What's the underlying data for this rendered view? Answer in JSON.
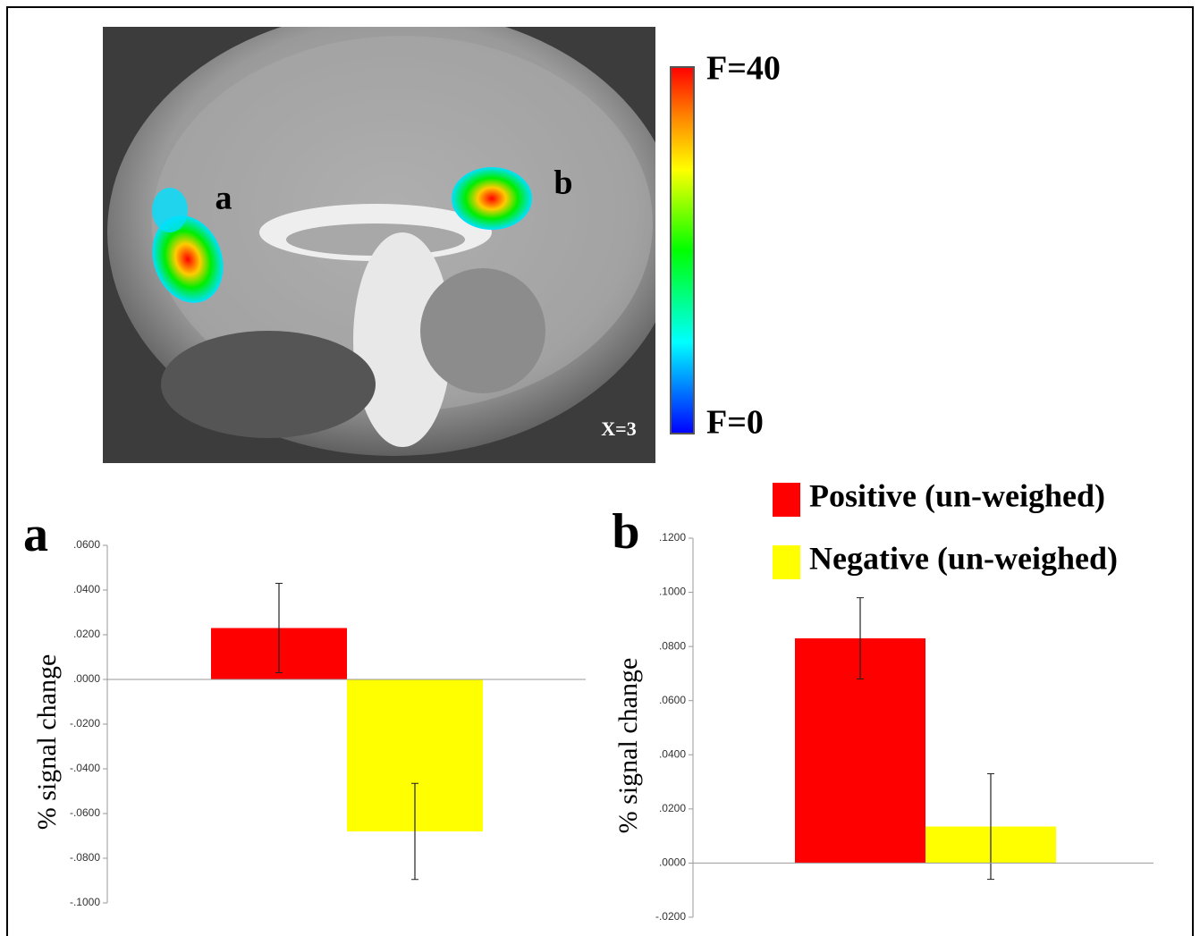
{
  "brain_panel": {
    "region_labels": [
      "a",
      "b"
    ],
    "colorbar_max": "F=40",
    "colorbar_min": "F=0",
    "slice": "X=3"
  },
  "chart_data": [
    {
      "type": "bar",
      "title": "a",
      "y_label": "% signal change",
      "categories": [
        null
      ],
      "series": [
        {
          "color": "#ff0000",
          "values": [
            0.023
          ],
          "errors": [
            0.02
          ]
        },
        {
          "color": "#ffff00",
          "values": [
            -0.068
          ],
          "errors": [
            0.0215
          ]
        }
      ],
      "ylim": [
        -0.1,
        0.06
      ],
      "yticks": [
        {
          "value": 0.06,
          "label": ".0600"
        },
        {
          "value": 0.04,
          "label": ".0400"
        },
        {
          "value": 0.02,
          "label": ".0200"
        },
        {
          "value": 0,
          "label": ".0000"
        },
        {
          "value": -0.02,
          "label": "-.0200"
        },
        {
          "value": -0.04,
          "label": "-.0400"
        },
        {
          "value": -0.06,
          "label": "-.0600"
        },
        {
          "value": -0.08,
          "label": "-.0800"
        },
        {
          "value": -0.1,
          "label": "-.1000"
        }
      ]
    },
    {
      "type": "bar",
      "title": "b",
      "y_label": "% signal change",
      "categories": [
        null
      ],
      "series": [
        {
          "name": "Positive (un-weighed)",
          "color": "#ff0000",
          "values": [
            0.083
          ],
          "errors": [
            0.015
          ]
        },
        {
          "name": "Negative (un-weighed)",
          "color": "#ffff00",
          "values": [
            0.0135
          ],
          "errors": [
            0.0195
          ]
        }
      ],
      "ylim": [
        -0.02,
        0.12
      ],
      "yticks": [
        {
          "value": 0.12,
          "label": ".1200"
        },
        {
          "value": 0.1,
          "label": ".1000"
        },
        {
          "value": 0.08,
          "label": ".0800"
        },
        {
          "value": 0.06,
          "label": ".0600"
        },
        {
          "value": 0.04,
          "label": ".0400"
        },
        {
          "value": 0.02,
          "label": ".0200"
        },
        {
          "value": 0,
          "label": ".0000"
        },
        {
          "value": -0.02,
          "label": "-.0200"
        }
      ]
    }
  ]
}
